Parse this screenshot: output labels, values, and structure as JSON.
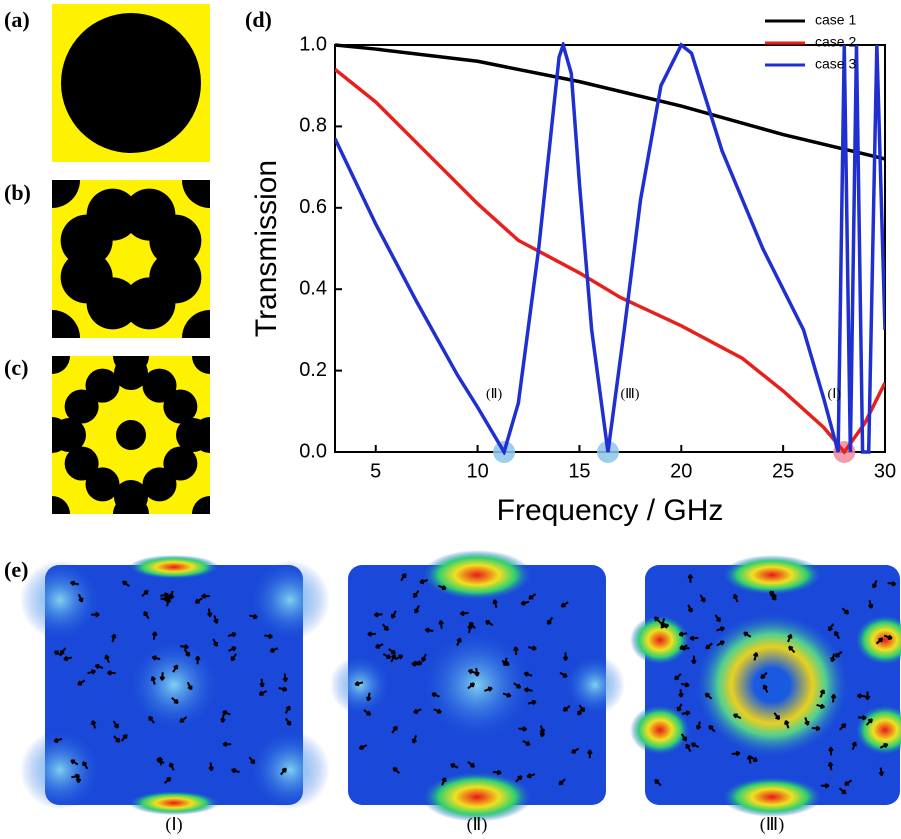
{
  "panel_labels": {
    "a": "(a)",
    "b": "(b)",
    "c": "(c)",
    "e": "(e)"
  },
  "field_captions": [
    "(Ⅰ)",
    "(Ⅱ)",
    "(Ⅲ)"
  ],
  "chart_data": {
    "type": "line",
    "panel_label": "(d)",
    "xlabel": "Frequency / GHz",
    "ylabel": "Transmission",
    "xlim": [
      3,
      30
    ],
    "xticks": [
      5,
      10,
      15,
      20,
      25,
      30
    ],
    "ylim": [
      0,
      1.0
    ],
    "yticks": [
      {
        "value": 0,
        "label": "0.0"
      },
      0.2,
      0.4,
      0.6,
      0.8,
      {
        "value": 1,
        "label": "1.0"
      }
    ],
    "legend": "upper right",
    "series": [
      {
        "name": "case 1",
        "color": "#000000",
        "x": [
          3,
          5,
          10,
          15,
          20,
          25,
          30
        ],
        "values": [
          1.0,
          0.99,
          0.96,
          0.91,
          0.85,
          0.78,
          0.72
        ]
      },
      {
        "name": "case 2",
        "color": "#e8201c",
        "x": [
          3,
          5,
          7,
          10,
          12,
          15,
          17,
          20,
          23,
          25,
          27,
          28,
          29,
          30
        ],
        "values": [
          0.94,
          0.86,
          0.76,
          0.61,
          0.52,
          0.44,
          0.38,
          0.31,
          0.23,
          0.15,
          0.06,
          0.0,
          0.07,
          0.17
        ]
      },
      {
        "name": "case 3",
        "color": "#1f2fd0",
        "x": [
          3,
          5,
          7,
          9,
          10,
          11.3,
          12,
          13,
          14,
          14.2,
          14.6,
          15,
          15.6,
          16.4,
          17.2,
          18,
          19,
          20,
          20.5,
          21,
          22,
          24,
          26,
          27,
          27.7,
          28,
          28.3,
          28.6,
          28.9,
          29.2,
          29.6,
          30
        ],
        "values": [
          0.77,
          0.56,
          0.37,
          0.19,
          0.11,
          0.0,
          0.12,
          0.5,
          0.97,
          1.0,
          0.93,
          0.66,
          0.3,
          0.0,
          0.3,
          0.62,
          0.9,
          1.0,
          0.98,
          0.9,
          0.74,
          0.5,
          0.3,
          0.13,
          0.0,
          1.0,
          0.0,
          1.0,
          0.0,
          0.0,
          1.0,
          0.3
        ]
      }
    ],
    "annotations": [
      {
        "text": "(Ⅱ)",
        "x": 11.3,
        "y": 0,
        "color": "#8ec4ea"
      },
      {
        "text": "(Ⅲ)",
        "x": 16.4,
        "y": 0,
        "color": "#8ec4ea"
      },
      {
        "text": "(Ⅰ)",
        "x": 28,
        "y": 0,
        "color": "#f08ca0"
      }
    ]
  }
}
